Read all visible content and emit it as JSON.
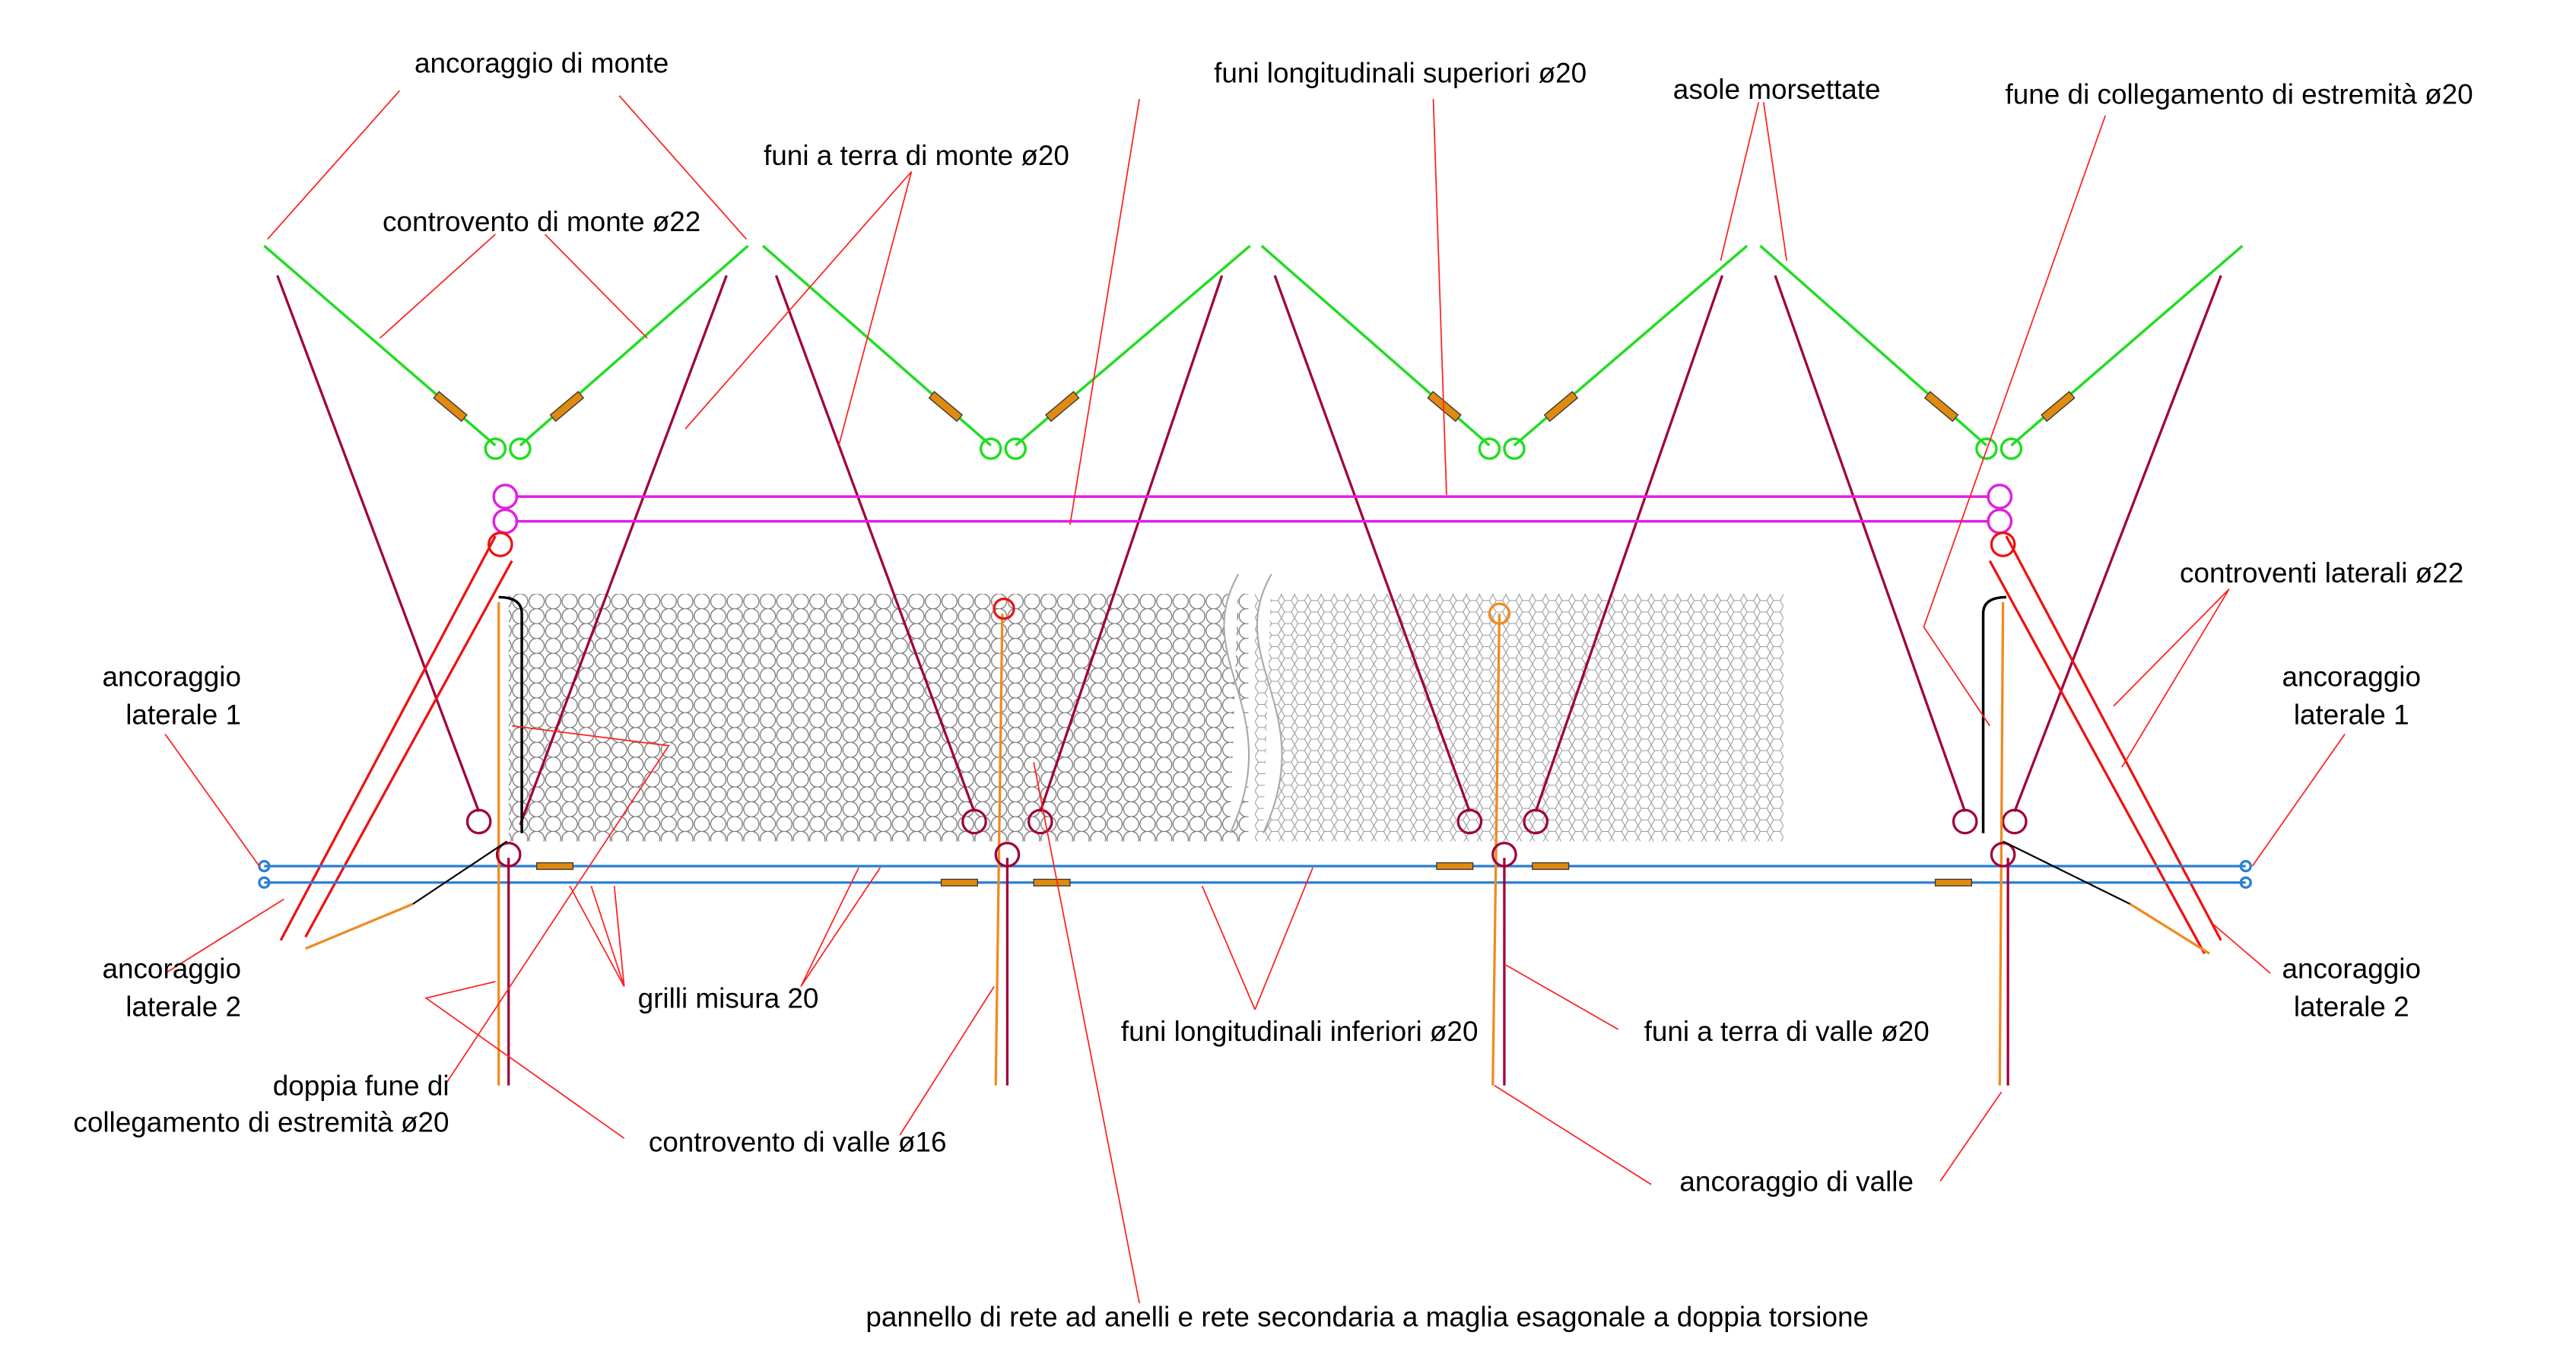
{
  "labels": {
    "anchor_upstream": "ancoraggio di monte",
    "upper_longitudinal": "funi longitudinali superiori ø20",
    "clamped_loops": "asole morsettate",
    "end_connection": "fune di collegamento di estremità ø20",
    "ground_upstream": "funi a terra di monte ø20",
    "brace_upstream": "controvento di monte ø22",
    "lateral_braces": "controventi laterali ø22",
    "lateral_anchor_1_left": [
      "ancoraggio",
      "laterale 1"
    ],
    "lateral_anchor_1_right": [
      "ancoraggio",
      "laterale 1"
    ],
    "lateral_anchor_2_left": [
      "ancoraggio",
      "laterale 2"
    ],
    "lateral_anchor_2_right": [
      "ancoraggio",
      "laterale 2"
    ],
    "shackles": "grilli misura 20",
    "lower_longitudinal": "funi longitudinali inferiori ø20",
    "ground_downstream": "funi a terra di valle ø20",
    "double_end_connection": [
      "doppia fune di",
      "collegamento di estremità ø20"
    ],
    "brace_downstream": "controvento di valle ø16",
    "anchor_downstream": "ancoraggio di valle",
    "panel": "pannello di rete ad anelli e rete secondaria a maglia esagonale a doppia torsione"
  }
}
